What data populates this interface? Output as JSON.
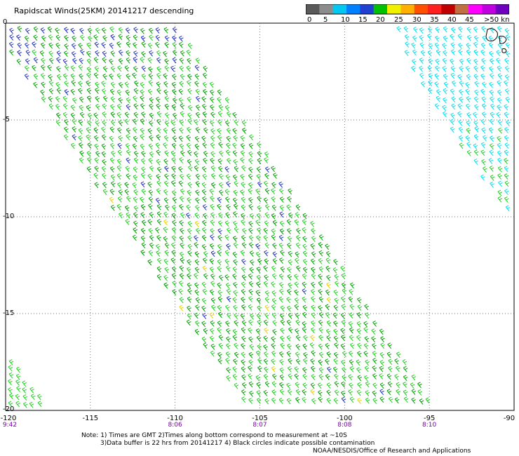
{
  "title": "Rapidscat Winds(25KM) 20141217 descending",
  "legend": {
    "labels": [
      "0",
      "5",
      "10",
      "15",
      "20",
      "25",
      "30",
      "35",
      "40",
      "45",
      ">50 knots"
    ],
    "colors": [
      "#5a5a5a",
      "#8c8c8c",
      "#00c8f0",
      "#0080ff",
      "#2040d0",
      "#00c000",
      "#f0f000",
      "#ffb000",
      "#ff5000",
      "#ff2020",
      "#c00000",
      "#c07040",
      "#ff00ff",
      "#c000e0",
      "#7000c0"
    ]
  },
  "map": {
    "lon_range": [
      -120,
      -90
    ],
    "lat_range": [
      -20,
      0
    ],
    "lon_labels": [
      "-120",
      "-115",
      "-110",
      "-105",
      "-100",
      "-95",
      "-90"
    ],
    "lat_labels": [
      "0",
      "-5",
      "-10",
      "-15",
      "-20"
    ],
    "time_labels": [
      "9:42",
      "8:06",
      "8:07",
      "8:08",
      "8:10"
    ],
    "time_lons": [
      -120,
      -110,
      -105,
      -100,
      -95
    ],
    "wind_colors": {
      "low": "#00e0f0",
      "mid": "#00a000",
      "light": "#20d020",
      "blue": "#2030c0",
      "yellow": "#e8d000"
    }
  },
  "notes": {
    "line1": "Note: 1) Times are GMT 2)Times along bottom correspond to measurement at ~10S",
    "line2": "3)Data buffer is 22 hrs from 20141217 4) Black circles indicate possible contamination",
    "credit": "NOAA/NESDIS/Office of Research and Applications"
  }
}
